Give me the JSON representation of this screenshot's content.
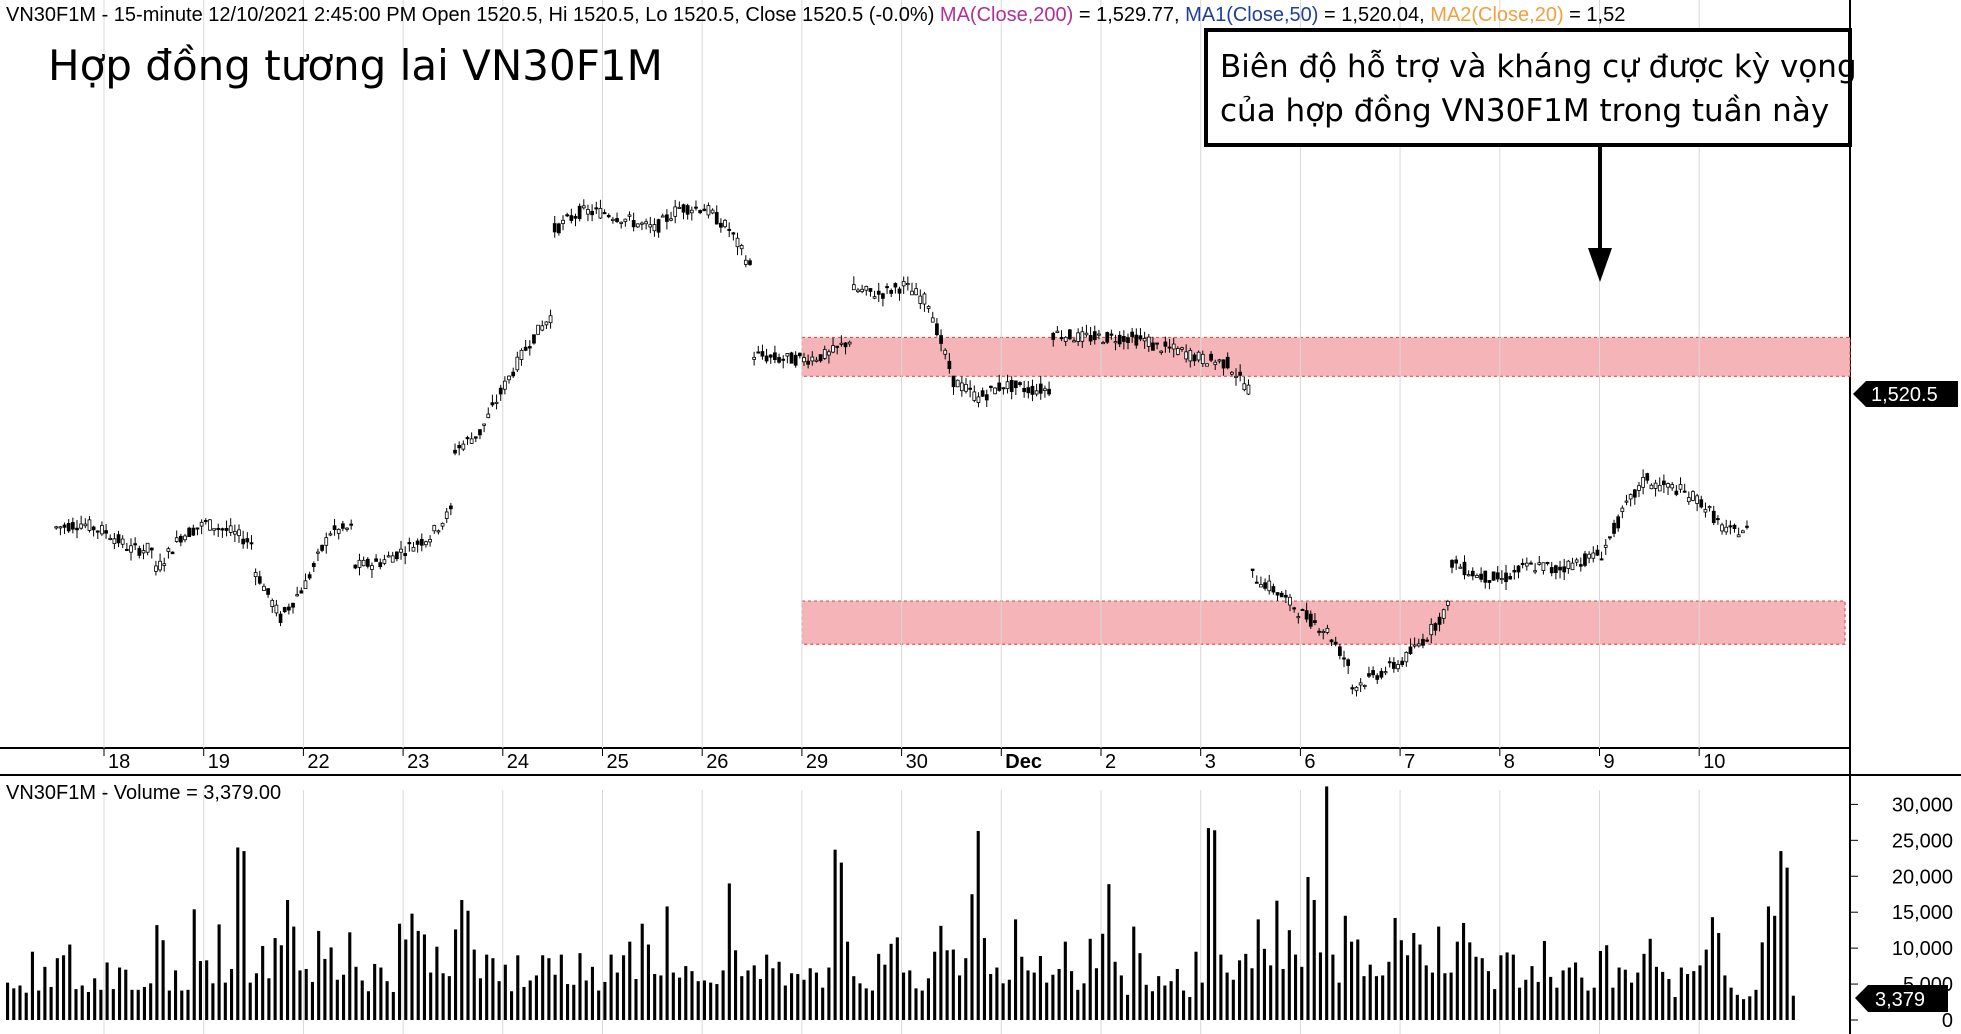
{
  "header": {
    "symbol": "VN30F1M",
    "interval_text": " - 15-minute 12/10/2021 2:45:00 PM Open 1520.5, Hi 1520.5, Lo 1520.5, Close 1520.5 (-0.0%) ",
    "ma_label": "MA(Close,200)",
    "ma_value": " = 1,529.77, ",
    "ma1_label": "MA1(Close,50)",
    "ma1_value": " = 1,520.04, ",
    "ma2_label": "MA2(Close,20)",
    "ma2_value": " = 1,52",
    "colors": {
      "ma": "#b0309a",
      "ma1": "#1f3f9a",
      "ma2": "#f0a040"
    }
  },
  "title": "Hợp đồng tương lai VN30F1M",
  "annotation": {
    "line1": "Biên độ hỗ trợ và kháng cự được kỳ vọng",
    "line2": "của hợp đồng VN30F1M trong tuần này"
  },
  "last_price_label": "1,520.5",
  "volume_header": "VN30F1M - Volume = 3,379.00",
  "volume_last_label": "3,379",
  "chart_data": [
    {
      "type": "candlestick",
      "series_name": "VN30F1M 15-minute",
      "x_categories": [
        "18",
        "19",
        "22",
        "23",
        "24",
        "25",
        "26",
        "29",
        "30",
        "Dec",
        "2",
        "3",
        "6",
        "7",
        "8",
        "9",
        "10"
      ],
      "price_values": {
        "18": [
          1521,
          1522,
          1520,
          1516,
          1516
        ],
        "19": [
          1511,
          1519,
          1522,
          1520,
          1517
        ],
        "22": [
          1511,
          1500,
          1508,
          1520,
          1521
        ],
        "23": [
          1512,
          1513,
          1516,
          1519,
          1526
        ],
        "24": [
          1539,
          1543,
          1554,
          1564,
          1571
        ],
        "25": [
          1590,
          1594,
          1594,
          1592,
          1590
        ],
        "26": [
          1590,
          1595,
          1595,
          1590,
          1580
        ],
        "29": [
          1561,
          1560,
          1560,
          1561,
          1565
        ],
        "30": [
          1576,
          1575,
          1577,
          1573,
          1555
        ],
        "Dec": [
          1555,
          1551,
          1554,
          1553,
          1553
        ],
        "2": [
          1566,
          1565,
          1565,
          1565,
          1564
        ],
        "3": [
          1563,
          1562,
          1560,
          1559,
          1552
        ],
        "6": [
          1510,
          1506,
          1501,
          1497,
          1488
        ],
        "7": [
          1484,
          1487,
          1490,
          1496,
          1504
        ],
        "8": [
          1513,
          1510,
          1509,
          1512,
          1512
        ],
        "9": [
          1511,
          1513,
          1515,
          1526,
          1534
        ],
        "10": [
          1531,
          1530,
          1527,
          1520,
          1520.5
        ]
      },
      "last": {
        "open": 1520.5,
        "high": 1520.5,
        "low": 1520.5,
        "close": 1520.5,
        "change_pct": -0.0
      },
      "moving_averages": [
        {
          "name": "MA(Close,200)",
          "value": 1529.77
        },
        {
          "name": "MA1(Close,50)",
          "value": 1520.04
        }
      ],
      "y_range": [
        1470,
        1613
      ],
      "highlight_bands": [
        {
          "label": "kháng cự",
          "from": 1556,
          "to": 1565
        },
        {
          "label": "hỗ trợ",
          "from": 1494,
          "to": 1504
        }
      ],
      "grid": "vertical"
    },
    {
      "type": "bar",
      "title": "VN30F1M - Volume = 3,379.00",
      "y_ticks": [
        "30,000",
        "25,000",
        "20,000",
        "15,000",
        "10,000",
        "5,000",
        "0"
      ],
      "ylim": [
        0,
        32000
      ],
      "values": [
        5200,
        4400,
        4800,
        3800,
        9500,
        4100,
        7400,
        4600,
        8600,
        9000,
        10500,
        4300,
        4800,
        3900,
        5800,
        4200,
        8000,
        4300,
        7300,
        7000,
        4200,
        4200,
        4600,
        5100,
        13200,
        11100,
        4100,
        6900,
        4100,
        4200,
        15400,
        8200,
        8300,
        5100,
        13300,
        5200,
        7100,
        24000,
        23500,
        5200,
        6500,
        10300,
        5800,
        11400,
        10400,
        16700,
        13000,
        6900,
        7100,
        5300,
        12400,
        8500,
        10100,
        5600,
        6300,
        12200,
        7400,
        5500,
        4000,
        7800,
        7300,
        5400,
        3900,
        13400,
        11200,
        14800,
        12400,
        11900,
        6600,
        10200,
        6500,
        6100,
        12600,
        16700,
        15200,
        9800,
        5800,
        9100,
        8600,
        5400,
        7700,
        4000,
        9000,
        4600,
        5500,
        6200,
        9000,
        8600,
        6300,
        9100,
        5000,
        4900,
        9300,
        5500,
        7400,
        4100,
        5300,
        9100,
        6600,
        9000,
        10900,
        5700,
        13400,
        10500,
        6400,
        6200,
        15800,
        6600,
        5900,
        7500,
        6800,
        5400,
        5500,
        5200,
        5000,
        6900,
        19000,
        9700,
        6100,
        6900,
        7600,
        5700,
        9100,
        7200,
        8100,
        4800,
        6500,
        6400,
        5600,
        7200,
        6600,
        4500,
        7300,
        23700,
        21900,
        10900,
        6100,
        5100,
        4400,
        4100,
        9200,
        7700,
        10600,
        11500,
        6600,
        6900,
        4400,
        4100,
        5800,
        9500,
        13100,
        9700,
        9800,
        6200,
        8600,
        17500,
        26300,
        11400,
        6400,
        7300,
        5100,
        5600,
        14000,
        8800,
        6900,
        6600,
        8900,
        5200,
        6300,
        7100,
        10900,
        6800,
        4200,
        5100,
        11300,
        7200,
        12000,
        18900,
        8100,
        6200,
        3500,
        13000,
        9300,
        4900,
        4000,
        6100,
        4800,
        5400,
        7100,
        4100,
        3200,
        9500,
        5200,
        26700,
        26400,
        9100,
        6600,
        5600,
        8300,
        9200,
        7200,
        14000,
        9900,
        7600,
        16600,
        7100,
        12500,
        9100,
        7400,
        19900,
        16700,
        9400,
        32500,
        9100,
        5200,
        14500,
        10900,
        11200,
        6100,
        7700,
        6100,
        6200,
        8100,
        14200,
        11100,
        9000,
        12100,
        10500,
        7600,
        6600,
        13000,
        6500,
        6600,
        10900,
        13500,
        10800,
        8800,
        8600,
        6800,
        4300,
        9000,
        9400,
        9100,
        4500,
        5600,
        7500,
        5300,
        11000,
        6000,
        4500,
        6900,
        7300,
        8000,
        5900,
        4100,
        4500,
        9600,
        10400,
        4500,
        7300,
        7000,
        5200,
        6600,
        9200,
        11300,
        7400,
        6700,
        5700,
        3200,
        7300,
        6400,
        6800,
        7600,
        9800,
        14300,
        12100,
        6200,
        4500,
        3500,
        2900,
        3300,
        4200,
        10800,
        15800,
        14500,
        23500,
        21200,
        3379
      ]
    }
  ]
}
